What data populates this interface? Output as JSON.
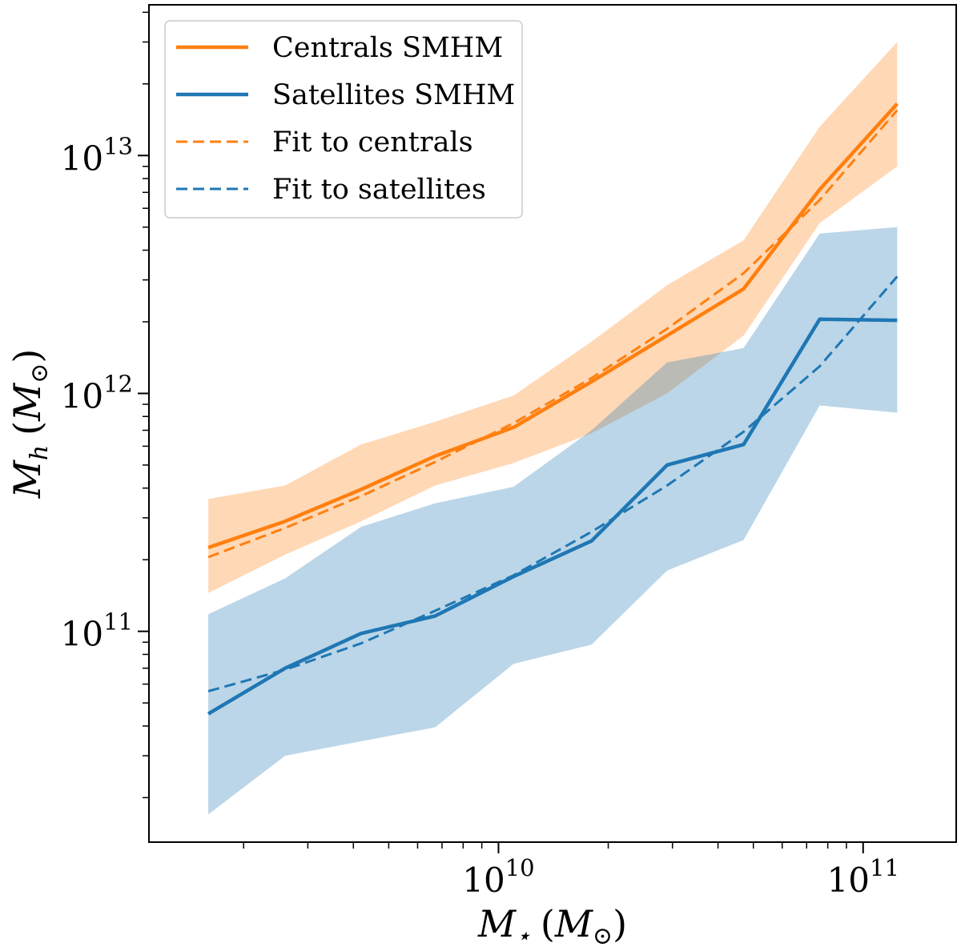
{
  "chart_data": {
    "type": "line",
    "title": "",
    "xscale": "log",
    "yscale": "log",
    "xlim": [
      1100000000.0,
      180000000000.0
    ],
    "ylim": [
      13000000000.0,
      43000000000000.0
    ],
    "xlabel": {
      "symbol": "M",
      "subscript": "⋆",
      "unit": "M",
      "unit_subscript": "⊙"
    },
    "ylabel": {
      "symbol": "M",
      "subscript": "h",
      "unit": "M",
      "unit_subscript": "⊙"
    },
    "x_ticks": [
      {
        "value": 10000000000.0,
        "base": "10",
        "exponent": "10"
      },
      {
        "value": 100000000000.0,
        "base": "10",
        "exponent": "11"
      }
    ],
    "y_ticks": [
      {
        "value": 100000000000.0,
        "base": "10",
        "exponent": "11"
      },
      {
        "value": 1000000000000.0,
        "base": "10",
        "exponent": "12"
      },
      {
        "value": 10000000000000.0,
        "base": "10",
        "exponent": "13"
      }
    ],
    "x": [
      1600000000.0,
      2600000000.0,
      4200000000.0,
      6700000000.0,
      11000000000.0,
      18000000000.0,
      29000000000.0,
      47000000000.0,
      76000000000.0,
      124000000000.0
    ],
    "bands": [
      {
        "name": "Centrals spread",
        "color": "#ff7f0e",
        "opacity": 0.3,
        "lower": [
          145000000000.0,
          210000000000.0,
          290000000000.0,
          410000000000.0,
          510000000000.0,
          680000000000.0,
          1000000000000.0,
          1750000000000.0,
          5200000000000.0,
          9000000000000.0
        ],
        "upper": [
          360000000000.0,
          410000000000.0,
          610000000000.0,
          760000000000.0,
          980000000000.0,
          1650000000000.0,
          2850000000000.0,
          4400000000000.0,
          13200000000000.0,
          30000000000000.0
        ]
      },
      {
        "name": "Satellites spread",
        "color": "#1f77b4",
        "opacity": 0.3,
        "lower": [
          17000000000.0,
          30000000000.0,
          34500000000.0,
          39500000000.0,
          73000000000.0,
          88000000000.0,
          180000000000.0,
          242000000000.0,
          890000000000.0,
          830000000000.0
        ],
        "upper": [
          118000000000.0,
          167000000000.0,
          275000000000.0,
          345000000000.0,
          405000000000.0,
          700000000000.0,
          1350000000000.0,
          1550000000000.0,
          4700000000000.0,
          5000000000000.0
        ]
      }
    ],
    "series": [
      {
        "name": "Centrals SMHM",
        "label": "Centrals SMHM",
        "color": "#ff7f0e",
        "style": "solid",
        "values": [
          225000000000.0,
          290000000000.0,
          395000000000.0,
          545000000000.0,
          720000000000.0,
          1120000000000.0,
          1750000000000.0,
          2750000000000.0,
          7200000000000.0,
          16500000000000.0
        ]
      },
      {
        "name": "Satellites SMHM",
        "label": "Satellites SMHM",
        "color": "#1f77b4",
        "style": "solid",
        "values": [
          45000000000.0,
          70000000000.0,
          98000000000.0,
          116000000000.0,
          170000000000.0,
          240000000000.0,
          500000000000.0,
          610000000000.0,
          2050000000000.0,
          2030000000000.0
        ]
      },
      {
        "name": "Fit to centrals",
        "label": "Fit to centrals",
        "color": "#ff7f0e",
        "style": "dashed",
        "values": [
          205000000000.0,
          272000000000.0,
          370000000000.0,
          515000000000.0,
          750000000000.0,
          1160000000000.0,
          1870000000000.0,
          3200000000000.0,
          6500000000000.0,
          15500000000000.0
        ]
      },
      {
        "name": "Fit to satellites",
        "label": "Fit to satellites",
        "color": "#1f77b4",
        "style": "dashed",
        "values": [
          56000000000.0,
          69000000000.0,
          89000000000.0,
          122000000000.0,
          172000000000.0,
          262000000000.0,
          410000000000.0,
          690000000000.0,
          1300000000000.0,
          3100000000000.0
        ]
      }
    ],
    "legend": {
      "location": "upper left"
    }
  }
}
